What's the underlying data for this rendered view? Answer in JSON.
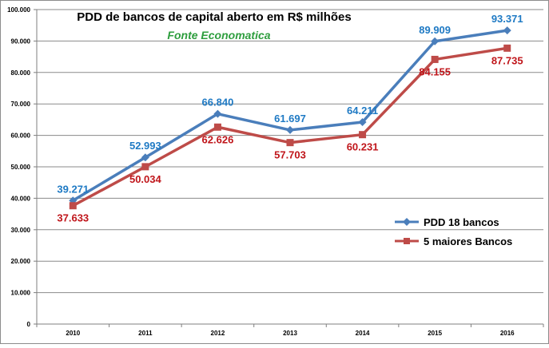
{
  "chart_data": {
    "type": "line",
    "title": "PDD de bancos de capital aberto em R$ milhões",
    "subtitle": "Fonte Economatica",
    "categories": [
      "2010",
      "2011",
      "2012",
      "2013",
      "2014",
      "2015",
      "2016"
    ],
    "ylim": [
      0,
      100000
    ],
    "y_ticks": [
      "0",
      "10.000",
      "20.000",
      "30.000",
      "40.000",
      "50.000",
      "60.000",
      "70.000",
      "80.000",
      "90.000",
      "100.000"
    ],
    "grid": true,
    "legend_position": "right",
    "series": [
      {
        "name": "PDD 18 bancos",
        "color": "#4a7ebb",
        "label_color": "#1f7ac4",
        "marker": "diamond",
        "values": [
          39271,
          52993,
          66840,
          61697,
          64211,
          89909,
          93371
        ],
        "labels": [
          "39.271",
          "52.993",
          "66.840",
          "61.697",
          "64.211",
          "89.909",
          "93.371"
        ]
      },
      {
        "name": "5 maiores Bancos",
        "color": "#be4b48",
        "label_color": "#c0161b",
        "marker": "square",
        "values": [
          37633,
          50034,
          62626,
          57703,
          60231,
          84155,
          87735
        ],
        "labels": [
          "37.633",
          "50.034",
          "62.626",
          "57.703",
          "60.231",
          "84.155",
          "87.735"
        ]
      }
    ],
    "subtitle_color": "#2e9e3e"
  }
}
